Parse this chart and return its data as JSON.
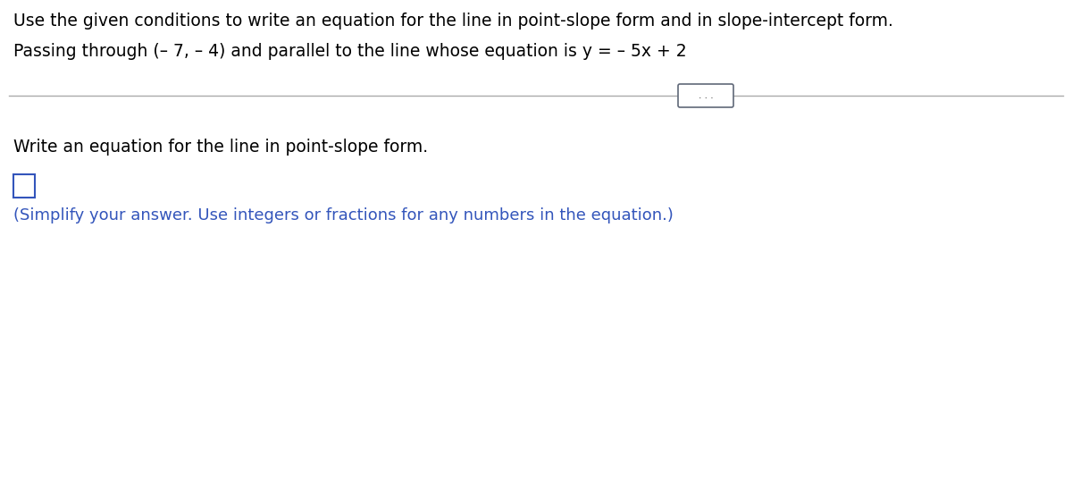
{
  "line1": "Use the given conditions to write an equation for the line in point-slope form and in slope-intercept form.",
  "line2": "Passing through (– 7, – 4) and parallel to the line whose equation is y = – 5x + 2",
  "section_label": "Write an equation for the line in point-slope form.",
  "hint_text": "(Simplify your answer. Use integers or fractions for any numbers in the equation.)",
  "bg_color": "#ffffff",
  "text_color": "#000000",
  "blue_color": "#3355bb",
  "divider_color": "#aaaaaa",
  "dots_button_color": "#606878",
  "font_size_main": 13.5,
  "font_size_hint": 13.0
}
